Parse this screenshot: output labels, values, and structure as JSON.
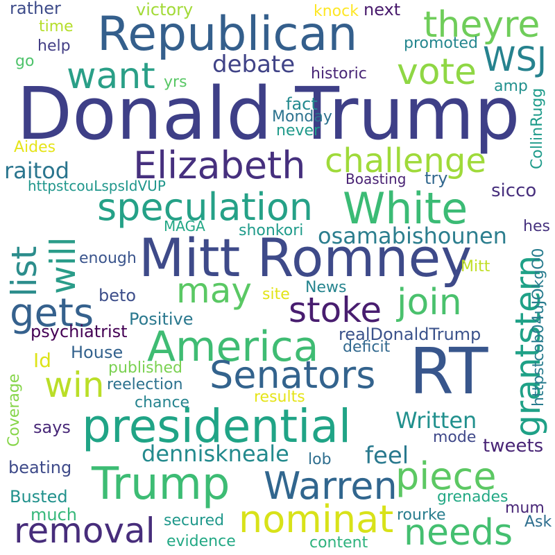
{
  "words": [
    {
      "text": "Donald Trump",
      "color": "#3e3f87"
    },
    {
      "text": "Republican",
      "color": "#345f8c"
    },
    {
      "text": "Mitt Romney",
      "color": "#3e4a89"
    },
    {
      "text": "RT",
      "color": "#38568c"
    },
    {
      "text": "theyre",
      "color": "#6fcd5a"
    },
    {
      "text": "WSJ",
      "color": "#26828e"
    },
    {
      "text": "vote",
      "color": "#8fd744"
    },
    {
      "text": "want",
      "color": "#2a9f87"
    },
    {
      "text": "debate",
      "color": "#404387"
    },
    {
      "text": "Elizabeth",
      "color": "#46307e"
    },
    {
      "text": "challenge",
      "color": "#9fda3a"
    },
    {
      "text": "speculation",
      "color": "#25a187"
    },
    {
      "text": "White",
      "color": "#3bbb75"
    },
    {
      "text": "raitod",
      "color": "#2a758e"
    },
    {
      "text": "list",
      "color": "#2c8d8c"
    },
    {
      "text": "will",
      "color": "#2a9c89"
    },
    {
      "text": "gets",
      "color": "#35618d"
    },
    {
      "text": "may",
      "color": "#5ac864"
    },
    {
      "text": "stoke",
      "color": "#481d6f"
    },
    {
      "text": "join",
      "color": "#4ac16d"
    },
    {
      "text": "America",
      "color": "#3fbc73"
    },
    {
      "text": "grantstern",
      "color": "#1fa187"
    },
    {
      "text": "osamabishounen",
      "color": "#2c7e8e"
    },
    {
      "text": "Senators",
      "color": "#33638d"
    },
    {
      "text": "win",
      "color": "#bade28"
    },
    {
      "text": "presidential",
      "color": "#20a486"
    },
    {
      "text": "Written",
      "color": "#21908d"
    },
    {
      "text": "piece",
      "color": "#5cc863"
    },
    {
      "text": "Trump",
      "color": "#3dbc74"
    },
    {
      "text": "Warren",
      "color": "#31668e"
    },
    {
      "text": "removal",
      "color": "#472d7b"
    },
    {
      "text": "nominat",
      "color": "#d8e219"
    },
    {
      "text": "needs",
      "color": "#44bf70"
    },
    {
      "text": "feel",
      "color": "#29798e"
    },
    {
      "text": "denniskneale",
      "color": "#238a8d"
    },
    {
      "text": "victory",
      "color": "#a2da37"
    },
    {
      "text": "rather",
      "color": "#3e4c8a"
    },
    {
      "text": "knock",
      "color": "#fde725"
    },
    {
      "text": "next",
      "color": "#481a6c"
    },
    {
      "text": "time",
      "color": "#b5de2b"
    },
    {
      "text": "help",
      "color": "#433e85"
    },
    {
      "text": "promoted",
      "color": "#24868e"
    },
    {
      "text": "go",
      "color": "#4ec36b"
    },
    {
      "text": "historic",
      "color": "#482576"
    },
    {
      "text": "yrs",
      "color": "#58c765"
    },
    {
      "text": "amp",
      "color": "#21908d"
    },
    {
      "text": "fact",
      "color": "#23898e"
    },
    {
      "text": "Monday",
      "color": "#2c728e"
    },
    {
      "text": "never",
      "color": "#1f9a8a"
    },
    {
      "text": "CollinRugg",
      "color": "#1e9b8a"
    },
    {
      "text": "Aides",
      "color": "#e5e419"
    },
    {
      "text": "httpstcouLspsIdVUP",
      "color": "#1f968b"
    },
    {
      "text": "Boasting",
      "color": "#482173"
    },
    {
      "text": "try",
      "color": "#31678e"
    },
    {
      "text": "sicco",
      "color": "#472f7d"
    },
    {
      "text": "hes",
      "color": "#46327e"
    },
    {
      "text": "MAGA",
      "color": "#22a785"
    },
    {
      "text": "shonkori",
      "color": "#1e9b8a"
    },
    {
      "text": "httpstcob04uJOkgO0",
      "color": "#287c8e"
    },
    {
      "text": "enough",
      "color": "#3a548c"
    },
    {
      "text": "Mitt",
      "color": "#c0df25"
    },
    {
      "text": "beto",
      "color": "#3d4e8a"
    },
    {
      "text": "News",
      "color": "#25848e"
    },
    {
      "text": "site",
      "color": "#e2e418"
    },
    {
      "text": "Positive",
      "color": "#2a788e"
    },
    {
      "text": "psychiatrist",
      "color": "#440154"
    },
    {
      "text": "realDonaldTrump",
      "color": "#3b528b"
    },
    {
      "text": "deficit",
      "color": "#31688e"
    },
    {
      "text": "Id",
      "color": "#dde318"
    },
    {
      "text": "House",
      "color": "#33628d"
    },
    {
      "text": "published",
      "color": "#7ad151"
    },
    {
      "text": "reelection",
      "color": "#2c718e"
    },
    {
      "text": "chance",
      "color": "#25838e"
    },
    {
      "text": "results",
      "color": "#e5e419"
    },
    {
      "text": "Coverage",
      "color": "#86d549"
    },
    {
      "text": "says",
      "color": "#482878"
    },
    {
      "text": "mode",
      "color": "#3f4889"
    },
    {
      "text": "tweets",
      "color": "#482475"
    },
    {
      "text": "lob",
      "color": "#2e6e8e"
    },
    {
      "text": "beating",
      "color": "#3e4a89"
    },
    {
      "text": "Busted",
      "color": "#21918c"
    },
    {
      "text": "much",
      "color": "#35b779"
    },
    {
      "text": "grenades",
      "color": "#22a884"
    },
    {
      "text": "secured",
      "color": "#1f988b"
    },
    {
      "text": "rourke",
      "color": "#287d8e"
    },
    {
      "text": "mum",
      "color": "#482677"
    },
    {
      "text": "evidence",
      "color": "#22a884"
    },
    {
      "text": "content",
      "color": "#2db27d"
    },
    {
      "text": "Ask",
      "color": "#2e6e8e"
    }
  ]
}
